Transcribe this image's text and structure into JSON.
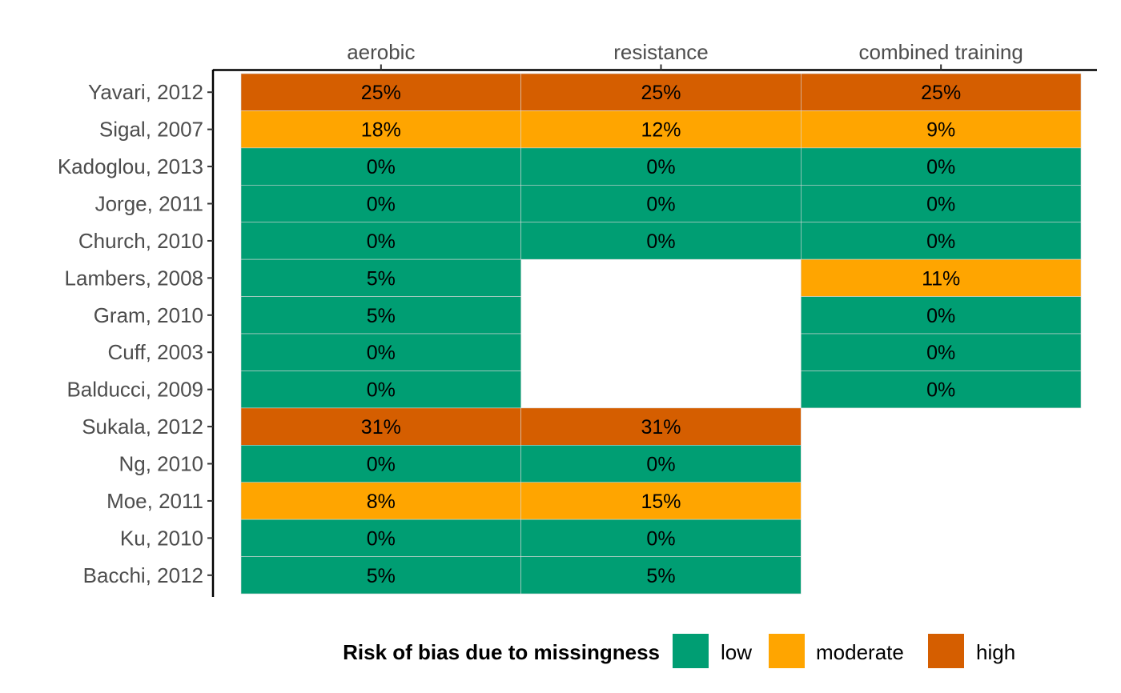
{
  "chart_data": {
    "type": "heatmap",
    "columns": [
      "aerobic",
      "resistance",
      "combined training"
    ],
    "rows": [
      "Yavari, 2012",
      "Sigal, 2007",
      "Kadoglou, 2013",
      "Jorge, 2011",
      "Church, 2010",
      "Lambers, 2008",
      "Gram, 2010",
      "Cuff, 2003",
      "Balducci, 2009",
      "Sukala, 2012",
      "Ng, 2010",
      "Moe, 2011",
      "Ku, 2010",
      "Bacchi, 2012"
    ],
    "cells": [
      [
        {
          "label": "25%",
          "risk": "high"
        },
        {
          "label": "25%",
          "risk": "high"
        },
        {
          "label": "25%",
          "risk": "high"
        }
      ],
      [
        {
          "label": "18%",
          "risk": "moderate"
        },
        {
          "label": "12%",
          "risk": "moderate"
        },
        {
          "label": "9%",
          "risk": "moderate"
        }
      ],
      [
        {
          "label": "0%",
          "risk": "low"
        },
        {
          "label": "0%",
          "risk": "low"
        },
        {
          "label": "0%",
          "risk": "low"
        }
      ],
      [
        {
          "label": "0%",
          "risk": "low"
        },
        {
          "label": "0%",
          "risk": "low"
        },
        {
          "label": "0%",
          "risk": "low"
        }
      ],
      [
        {
          "label": "0%",
          "risk": "low"
        },
        {
          "label": "0%",
          "risk": "low"
        },
        {
          "label": "0%",
          "risk": "low"
        }
      ],
      [
        {
          "label": "5%",
          "risk": "low"
        },
        null,
        {
          "label": "11%",
          "risk": "moderate"
        }
      ],
      [
        {
          "label": "5%",
          "risk": "low"
        },
        null,
        {
          "label": "0%",
          "risk": "low"
        }
      ],
      [
        {
          "label": "0%",
          "risk": "low"
        },
        null,
        {
          "label": "0%",
          "risk": "low"
        }
      ],
      [
        {
          "label": "0%",
          "risk": "low"
        },
        null,
        {
          "label": "0%",
          "risk": "low"
        }
      ],
      [
        {
          "label": "31%",
          "risk": "high"
        },
        {
          "label": "31%",
          "risk": "high"
        },
        null
      ],
      [
        {
          "label": "0%",
          "risk": "low"
        },
        {
          "label": "0%",
          "risk": "low"
        },
        null
      ],
      [
        {
          "label": "8%",
          "risk": "moderate"
        },
        {
          "label": "15%",
          "risk": "moderate"
        },
        null
      ],
      [
        {
          "label": "0%",
          "risk": "low"
        },
        {
          "label": "0%",
          "risk": "low"
        },
        null
      ],
      [
        {
          "label": "5%",
          "risk": "low"
        },
        {
          "label": "5%",
          "risk": "low"
        },
        null
      ]
    ],
    "legend": {
      "title": "Risk of bias due to missingness",
      "position": "bottom",
      "items": [
        {
          "key": "low",
          "label": "low",
          "color": "#009E73"
        },
        {
          "key": "moderate",
          "label": "moderate",
          "color": "#FFA500"
        },
        {
          "key": "high",
          "label": "high",
          "color": "#D55E00"
        }
      ]
    },
    "x_axis_position": "top",
    "grid": false
  }
}
